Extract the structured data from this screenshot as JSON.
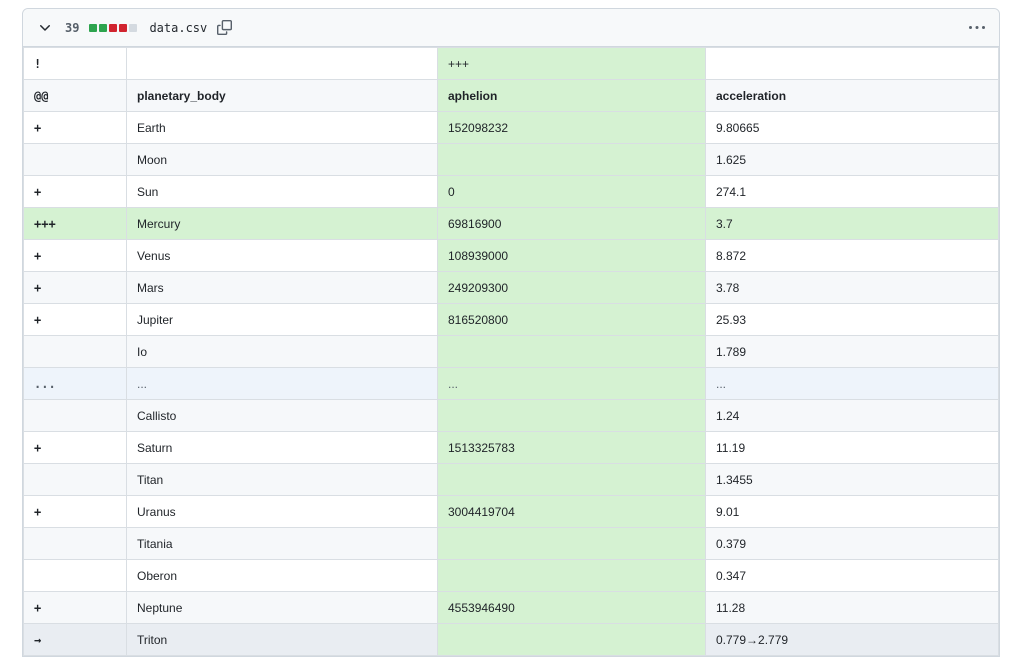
{
  "file_header": {
    "changes_count": "39",
    "filename": "data.csv",
    "diffstat": [
      "added",
      "added",
      "deleted",
      "deleted",
      "neutral"
    ],
    "icons": {
      "chevron": "chevron-down",
      "copy": "copy-file",
      "kebab": "more-options"
    }
  },
  "colors": {
    "white": "#ffffff",
    "gray": "#f6f8fa",
    "green": "#d5f2d2",
    "blue": "#eef4fb",
    "mod": "#e9edf2",
    "diffstat_added": "#2da44e",
    "diffstat_deleted": "#d1242f",
    "diffstat_neutral": "#d4dae0"
  },
  "table": {
    "rows": [
      {
        "gutter": "!",
        "cells": [
          "",
          "+++",
          ""
        ],
        "bg": [
          "white",
          "white",
          "green",
          "white"
        ]
      },
      {
        "gutter": "@@",
        "cells": [
          "planetary_body",
          "aphelion",
          "acceleration"
        ],
        "bg": [
          "gray",
          "gray",
          "green",
          "gray"
        ],
        "bold": true
      },
      {
        "gutter": "+",
        "cells": [
          "Earth",
          "152098232",
          "9.80665"
        ],
        "bg": [
          "white",
          "white",
          "green",
          "white"
        ]
      },
      {
        "gutter": "",
        "cells": [
          "Moon",
          "",
          "1.625"
        ],
        "bg": [
          "gray",
          "gray",
          "green",
          "gray"
        ]
      },
      {
        "gutter": "+",
        "cells": [
          "Sun",
          "0",
          "274.1"
        ],
        "bg": [
          "white",
          "white",
          "green",
          "white"
        ]
      },
      {
        "gutter": "+++",
        "cells": [
          "Mercury",
          "69816900",
          "3.7"
        ],
        "bg": [
          "green",
          "green",
          "green",
          "green"
        ]
      },
      {
        "gutter": "+",
        "cells": [
          "Venus",
          "108939000",
          "8.872"
        ],
        "bg": [
          "white",
          "white",
          "green",
          "white"
        ]
      },
      {
        "gutter": "+",
        "cells": [
          "Mars",
          "249209300",
          "3.78"
        ],
        "bg": [
          "gray",
          "gray",
          "green",
          "gray"
        ]
      },
      {
        "gutter": "+",
        "cells": [
          "Jupiter",
          "816520800",
          "25.93"
        ],
        "bg": [
          "white",
          "white",
          "green",
          "white"
        ]
      },
      {
        "gutter": "",
        "cells": [
          "Io",
          "",
          "1.789"
        ],
        "bg": [
          "gray",
          "gray",
          "green",
          "gray"
        ]
      },
      {
        "gutter": "...",
        "cells": [
          "...",
          "...",
          "..."
        ],
        "bg": [
          "blue",
          "blue",
          "green",
          "blue"
        ],
        "muted": true
      },
      {
        "gutter": "",
        "cells": [
          "Callisto",
          "",
          "1.24"
        ],
        "bg": [
          "gray",
          "gray",
          "green",
          "gray"
        ]
      },
      {
        "gutter": "+",
        "cells": [
          "Saturn",
          "1513325783",
          "11.19"
        ],
        "bg": [
          "white",
          "white",
          "green",
          "white"
        ]
      },
      {
        "gutter": "",
        "cells": [
          "Titan",
          "",
          "1.3455"
        ],
        "bg": [
          "gray",
          "gray",
          "green",
          "gray"
        ]
      },
      {
        "gutter": "+",
        "cells": [
          "Uranus",
          "3004419704",
          "9.01"
        ],
        "bg": [
          "white",
          "white",
          "green",
          "white"
        ]
      },
      {
        "gutter": "",
        "cells": [
          "Titania",
          "",
          "0.379"
        ],
        "bg": [
          "gray",
          "gray",
          "green",
          "gray"
        ]
      },
      {
        "gutter": "",
        "cells": [
          "Oberon",
          "",
          "0.347"
        ],
        "bg": [
          "white",
          "white",
          "green",
          "white"
        ]
      },
      {
        "gutter": "+",
        "cells": [
          "Neptune",
          "4553946490",
          "11.28"
        ],
        "bg": [
          "gray",
          "gray",
          "green",
          "gray"
        ]
      },
      {
        "gutter": "→",
        "cells": [
          "Triton",
          "",
          "0.779→2.779"
        ],
        "bg": [
          "mod",
          "mod",
          "green",
          "mod"
        ]
      }
    ]
  }
}
